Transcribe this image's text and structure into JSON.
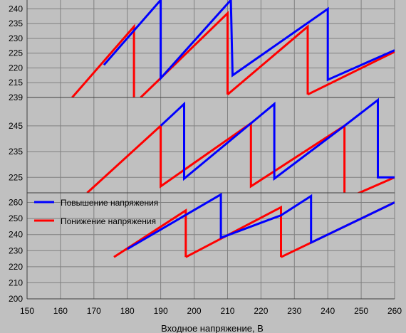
{
  "chart_data": [
    {
      "type": "line",
      "panel": "top",
      "xlim": [
        150,
        260
      ],
      "ylim": [
        210,
        243
      ],
      "yticks": [
        210,
        215,
        220,
        225,
        230,
        235,
        240
      ],
      "ytick_labels": [
        "",
        "215",
        "220",
        "225",
        "230",
        "235",
        "240"
      ],
      "grid": true,
      "series": [
        {
          "name": "Повышение напряжения",
          "color": "#0000ff",
          "points": [
            [
              173,
              221
            ],
            [
              190,
              243
            ],
            [
              190,
              216.5
            ],
            [
              211,
              243
            ],
            [
              211.5,
              217.5
            ],
            [
              240,
              240
            ],
            [
              240,
              216
            ],
            [
              260,
              226
            ]
          ]
        },
        {
          "name": "Понижение напряжения",
          "color": "#ff0000",
          "segments": [
            [
              [
                163.5,
                210
              ],
              [
                182,
                234
              ],
              [
                182,
                210
              ]
            ],
            [
              [
                184,
                210
              ],
              [
                210,
                238.5
              ],
              [
                210,
                211
              ]
            ],
            [
              [
                210,
                211
              ],
              [
                234,
                234
              ],
              [
                234,
                211
              ]
            ],
            [
              [
                234,
                211
              ],
              [
                260,
                225.5
              ]
            ]
          ]
        }
      ]
    },
    {
      "type": "line",
      "panel": "middle",
      "xlim": [
        150,
        260
      ],
      "ylim": [
        219,
        256
      ],
      "yticks": [
        225,
        235,
        245
      ],
      "top_tick_label": "239",
      "ytick_labels": [
        "225",
        "235",
        "245"
      ],
      "grid": true,
      "series": [
        {
          "name": "Повышение напряжения",
          "color": "#0000ff",
          "points": [
            [
              190,
              245
            ],
            [
              197,
              253.5
            ],
            [
              197,
              224.5
            ],
            [
              224,
              253.5
            ],
            [
              224,
              224.5
            ],
            [
              245,
              245
            ],
            [
              255,
              255
            ],
            [
              255,
              225
            ],
            [
              260,
              225
            ]
          ]
        },
        {
          "name": "Понижение напряжения",
          "color": "#ff0000",
          "points": [
            [
              168,
              219
            ],
            [
              190,
              245
            ],
            [
              190,
              221.5
            ],
            [
              217,
              246
            ],
            [
              217,
              221.5
            ],
            [
              245,
              245
            ],
            [
              245,
              216.5
            ],
            [
              260,
              225
            ]
          ]
        }
      ]
    },
    {
      "type": "line",
      "panel": "bottom",
      "xlim": [
        150,
        260
      ],
      "ylim": [
        200,
        266
      ],
      "yticks": [
        200,
        210,
        220,
        230,
        240,
        250,
        260
      ],
      "ytick_labels": [
        "200",
        "210",
        "220",
        "230",
        "240",
        "250",
        "260"
      ],
      "xticks": [
        150,
        160,
        170,
        180,
        190,
        200,
        210,
        220,
        230,
        240,
        250,
        260
      ],
      "xticks_labels": [
        "150",
        "160",
        "170",
        "180",
        "190",
        "200",
        "210",
        "220",
        "230",
        "240",
        "250",
        "260"
      ],
      "xlabel": "Входное напряжение, В",
      "grid": true,
      "legend": {
        "position": "upper-left",
        "items": [
          {
            "label": "Повышение напряжения",
            "color": "#0000ff"
          },
          {
            "label": "Понижение напряжения",
            "color": "#ff0000"
          }
        ]
      },
      "series": [
        {
          "name": "Повышение напряжения",
          "color": "#0000ff",
          "points": [
            [
              180,
              231
            ],
            [
              208,
              265
            ],
            [
              208,
              238
            ],
            [
              226,
              252
            ],
            [
              235,
              264
            ],
            [
              235,
              235
            ],
            [
              260,
              260
            ]
          ]
        },
        {
          "name": "Понижение напряжения",
          "color": "#ff0000",
          "segments": [
            [
              [
                176,
                226
              ],
              [
                197.5,
                255
              ],
              [
                197.5,
                226
              ]
            ],
            [
              [
                197.5,
                226
              ],
              [
                226,
                257
              ],
              [
                226,
                226
              ]
            ],
            [
              [
                226,
                226
              ],
              [
                260,
                260
              ]
            ]
          ]
        }
      ]
    }
  ]
}
